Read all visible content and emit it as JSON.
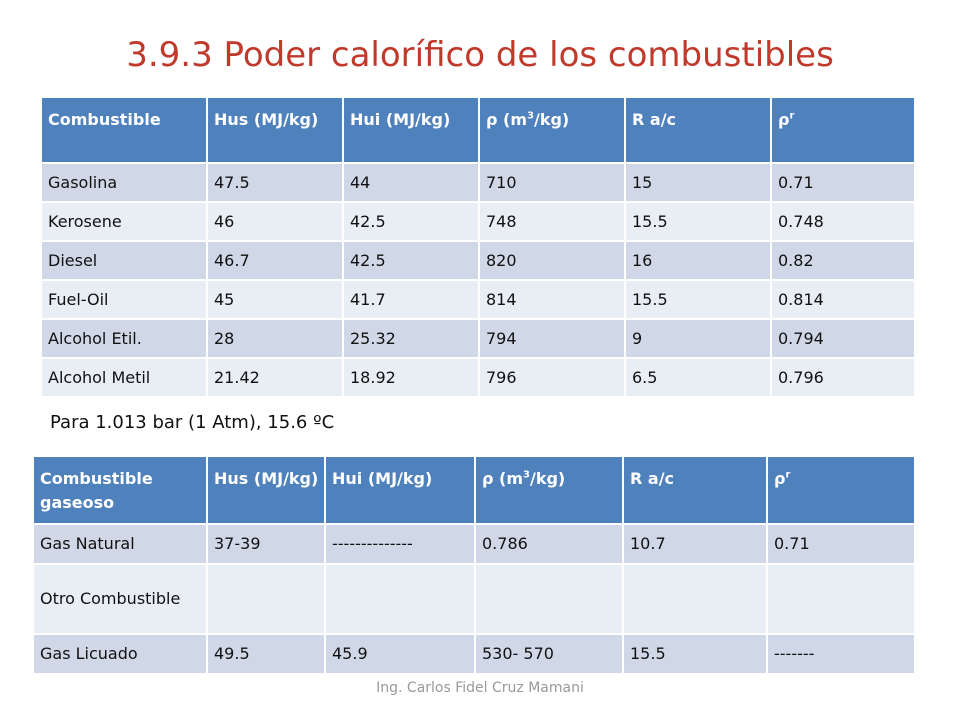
{
  "slide": {
    "title": "3.9.3 Poder calorífico de los combustibles",
    "note": "Para 1.013 bar (1 Atm), 15.6 ºC",
    "footer": "Ing. Carlos Fidel Cruz Mamani"
  },
  "table1": {
    "headers": {
      "c0": "Combustible",
      "c1": "Hus (MJ/kg)",
      "c2": "Hui (MJ/kg)",
      "c3_pre": "ρ (m",
      "c3_sup": "3",
      "c3_post": "/kg)",
      "c4": "R  a/c",
      "c5_pre": "ρ",
      "c5_sup": "r"
    },
    "rows": [
      [
        "Gasolina",
        "47.5",
        "44",
        "710",
        "15",
        "0.71"
      ],
      [
        "Kerosene",
        "46",
        "42.5",
        "748",
        "15.5",
        "0.748"
      ],
      [
        "Diesel",
        "46.7",
        "42.5",
        "820",
        "16",
        "0.82"
      ],
      [
        "Fuel-Oil",
        "45",
        "41.7",
        "814",
        "15.5",
        "0.814"
      ],
      [
        "Alcohol Etil.",
        "28",
        "25.32",
        "794",
        "9",
        "0.794"
      ],
      [
        "Alcohol Metil",
        "21.42",
        "18.92",
        "796",
        "6.5",
        "0.796"
      ]
    ]
  },
  "table2": {
    "headers": {
      "c0": "Combustible gaseoso",
      "c1": "Hus (MJ/kg)",
      "c2": "Hui (MJ/kg)",
      "c3_pre": "ρ (m",
      "c3_sup": "3",
      "c3_post": "/kg)",
      "c4": "R  a/c",
      "c5_pre": "ρ",
      "c5_sup": "r"
    },
    "rows": [
      [
        "Gas Natural",
        "37-39",
        "--------------",
        "0.786",
        "10.7",
        "0.71"
      ],
      [
        "Otro Combustible",
        "",
        "",
        "",
        "",
        ""
      ],
      [
        "Gas Licuado",
        "49.5",
        "45.9",
        "530- 570",
        "15.5",
        "-------"
      ]
    ]
  }
}
